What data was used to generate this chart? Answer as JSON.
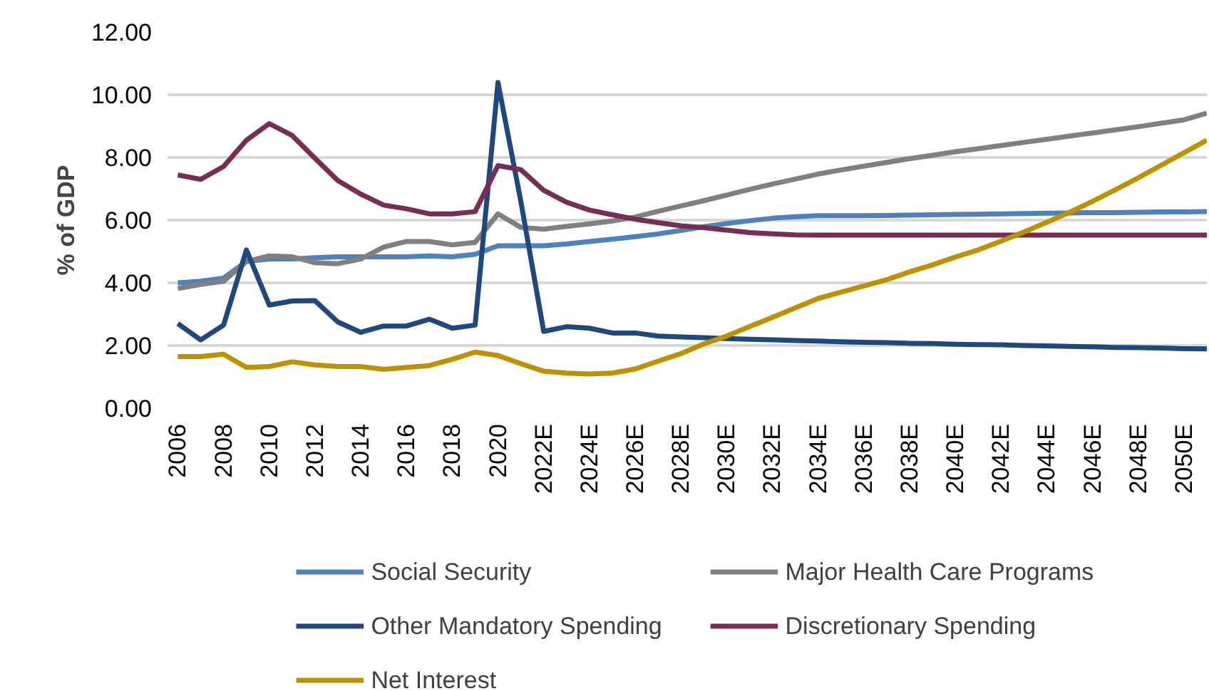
{
  "chart_data": {
    "type": "line",
    "ylabel": "% of GDP",
    "categories": [
      "2006",
      null,
      "2008",
      null,
      "2010",
      null,
      "2012",
      null,
      "2014",
      null,
      "2016",
      null,
      "2018",
      null,
      "2020",
      null,
      "2022E",
      null,
      "2024E",
      null,
      "2026E",
      null,
      "2028E",
      null,
      "2030E",
      null,
      "2032E",
      null,
      "2034E",
      null,
      "2036E",
      null,
      "2038E",
      null,
      "2040E",
      null,
      "2042E",
      null,
      "2044E",
      null,
      "2046E",
      null,
      "2048E",
      null,
      "2050E",
      null
    ],
    "ylim": [
      0,
      12
    ],
    "yticks": [
      {
        "value": 0,
        "label": "0.00"
      },
      {
        "value": 2,
        "label": "2.00"
      },
      {
        "value": 4,
        "label": "4.00"
      },
      {
        "value": 6,
        "label": "6.00"
      },
      {
        "value": 8,
        "label": "8.00"
      },
      {
        "value": 10,
        "label": "10.00"
      },
      {
        "value": 12,
        "label": "12.00"
      }
    ],
    "grid": "y",
    "legend": "bottom",
    "marker": "none",
    "line_style": "solid",
    "series": [
      {
        "name": "Social Security",
        "color": "#4f81bd",
        "values": [
          4.0,
          4.05,
          4.15,
          4.68,
          4.76,
          4.76,
          4.8,
          4.83,
          4.83,
          4.83,
          4.83,
          4.86,
          4.83,
          4.91,
          5.18,
          5.18,
          5.18,
          5.24,
          5.32,
          5.39,
          5.47,
          5.56,
          5.67,
          5.79,
          5.89,
          5.98,
          6.06,
          6.11,
          6.14,
          6.14,
          6.14,
          6.15,
          6.16,
          6.17,
          6.18,
          6.19,
          6.2,
          6.21,
          6.22,
          6.23,
          6.24,
          6.24,
          6.25,
          6.26,
          6.26,
          6.27
        ]
      },
      {
        "name": "Major Health Care Programs",
        "color": "#808080",
        "values": [
          3.82,
          3.95,
          4.05,
          4.68,
          4.86,
          4.83,
          4.64,
          4.61,
          4.76,
          5.14,
          5.32,
          5.32,
          5.21,
          5.29,
          6.2,
          5.77,
          5.71,
          5.8,
          5.88,
          5.97,
          6.1,
          6.28,
          6.45,
          6.62,
          6.8,
          6.98,
          7.15,
          7.31,
          7.47,
          7.6,
          7.72,
          7.84,
          7.96,
          8.07,
          8.18,
          8.28,
          8.38,
          8.48,
          8.58,
          8.68,
          8.78,
          8.88,
          8.98,
          9.09,
          9.2,
          9.41
        ]
      },
      {
        "name": "Other Mandatory Spending",
        "color": "#1f497d",
        "values": [
          2.7,
          2.18,
          2.65,
          5.05,
          3.29,
          3.42,
          3.43,
          2.75,
          2.42,
          2.62,
          2.62,
          2.84,
          2.55,
          2.65,
          10.39,
          6.6,
          2.45,
          2.6,
          2.55,
          2.4,
          2.4,
          2.3,
          2.27,
          2.25,
          2.22,
          2.2,
          2.18,
          2.16,
          2.14,
          2.12,
          2.1,
          2.09,
          2.07,
          2.06,
          2.04,
          2.03,
          2.02,
          2.0,
          1.99,
          1.97,
          1.96,
          1.94,
          1.93,
          1.92,
          1.9,
          1.89
        ]
      },
      {
        "name": "Discretionary Spending",
        "color": "#772d54",
        "values": [
          7.44,
          7.3,
          7.71,
          8.55,
          9.08,
          8.7,
          7.97,
          7.26,
          6.83,
          6.48,
          6.36,
          6.2,
          6.2,
          6.27,
          7.74,
          7.61,
          6.95,
          6.57,
          6.32,
          6.17,
          6.03,
          5.92,
          5.82,
          5.76,
          5.68,
          5.6,
          5.56,
          5.53,
          5.52,
          5.52,
          5.52,
          5.52,
          5.52,
          5.52,
          5.52,
          5.52,
          5.52,
          5.52,
          5.52,
          5.52,
          5.52,
          5.52,
          5.52,
          5.52,
          5.52,
          5.52
        ]
      },
      {
        "name": "Net Interest",
        "color": "#bf9000",
        "values": [
          1.65,
          1.65,
          1.72,
          1.3,
          1.33,
          1.48,
          1.38,
          1.33,
          1.33,
          1.24,
          1.3,
          1.36,
          1.56,
          1.79,
          1.68,
          1.42,
          1.18,
          1.12,
          1.09,
          1.12,
          1.25,
          1.5,
          1.74,
          2.05,
          2.3,
          2.6,
          2.9,
          3.2,
          3.5,
          3.7,
          3.9,
          4.1,
          4.35,
          4.57,
          4.82,
          5.05,
          5.33,
          5.62,
          5.93,
          6.25,
          6.6,
          6.97,
          7.35,
          7.75,
          8.15,
          8.55
        ]
      }
    ]
  }
}
